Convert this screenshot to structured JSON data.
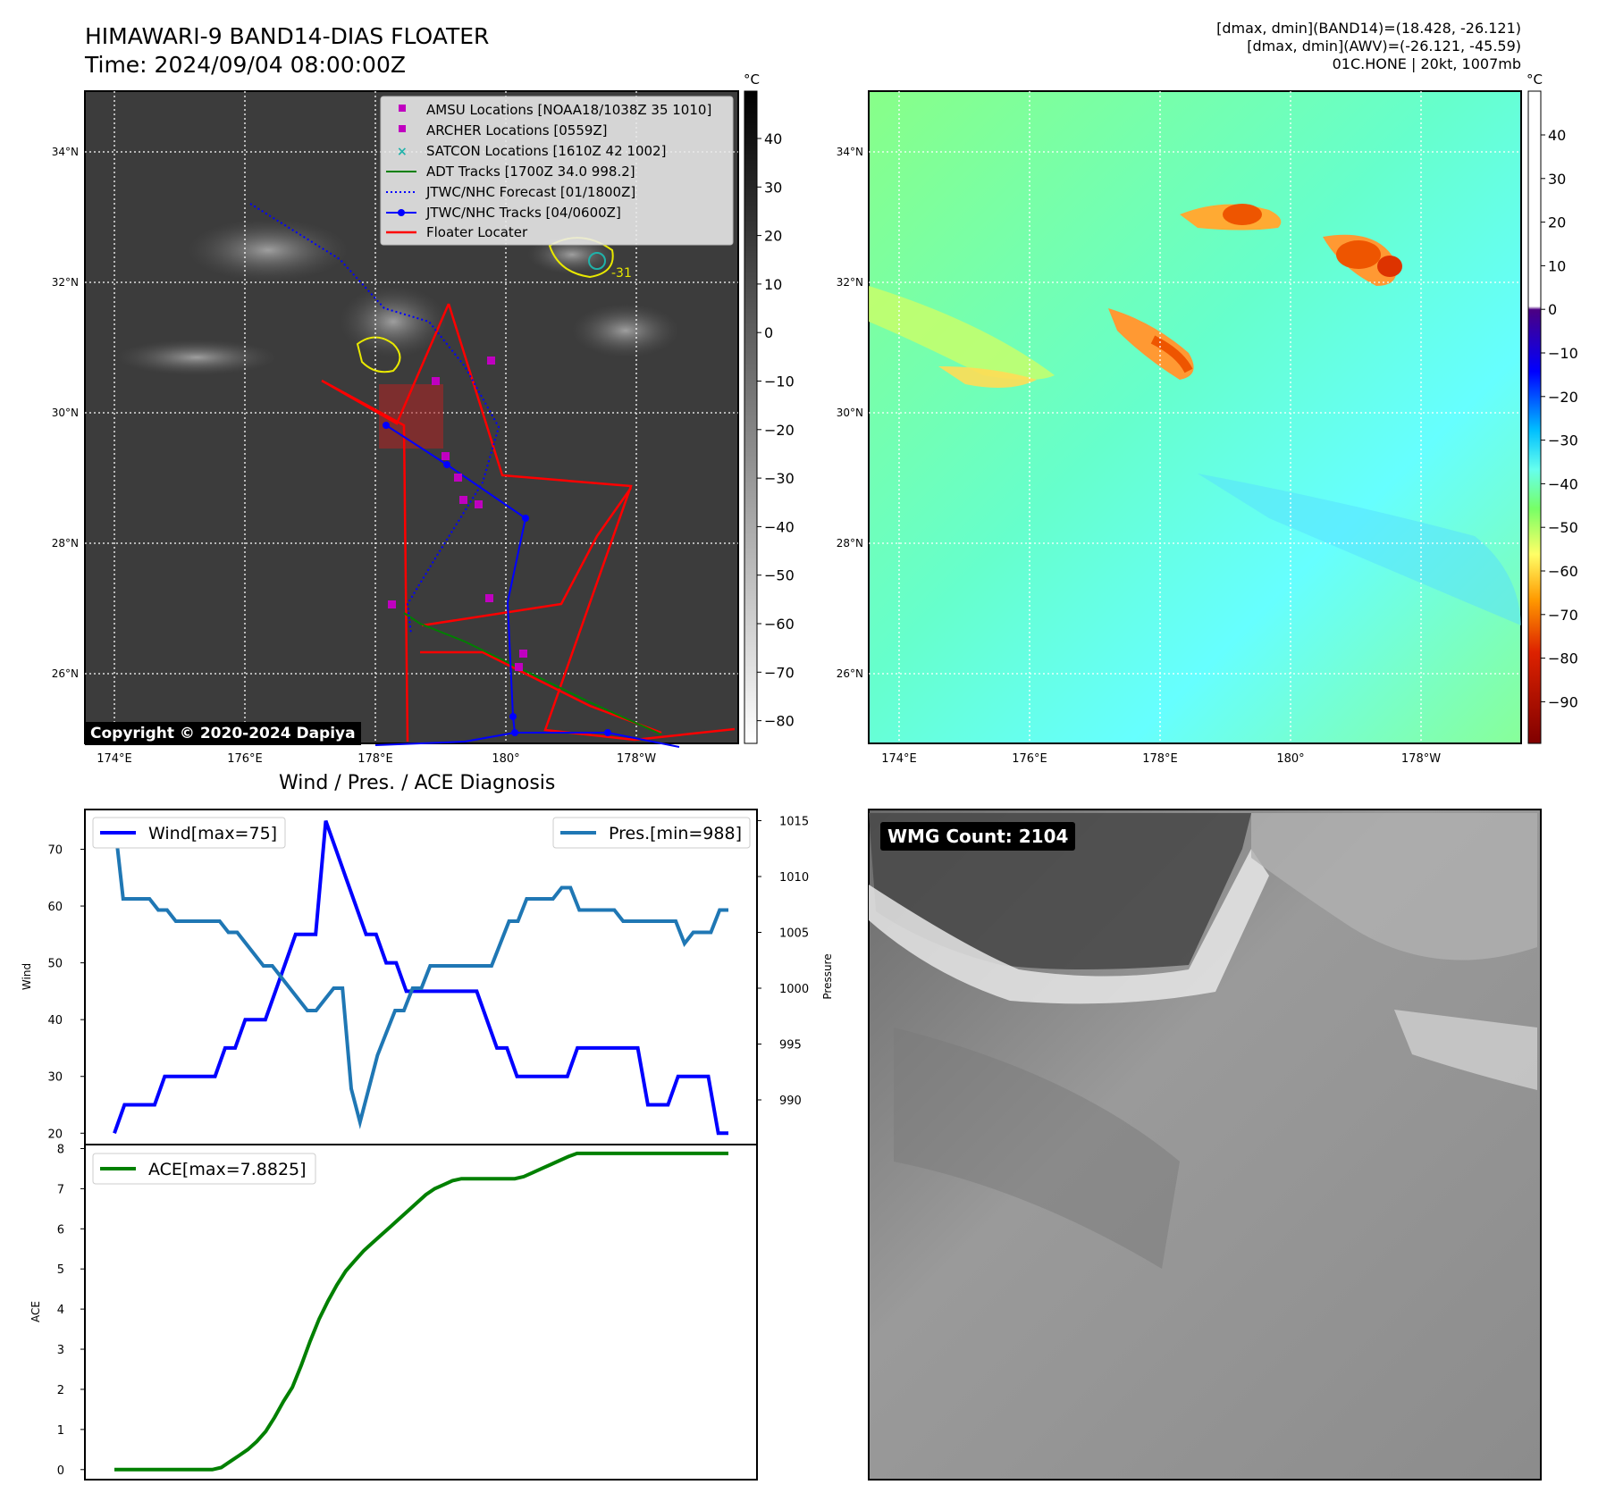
{
  "header": {
    "title": "HIMAWARI-9 BAND14-DIAS FLOATER",
    "time": "Time: 2024/09/04 08:00:00Z",
    "info_lines": [
      "[dmax, dmin](BAND14)=(18.428, -26.121)",
      "[dmax, dmin](AWV)=(-26.121, -45.59)",
      "01C.HONE | 20kt, 1007mb"
    ],
    "copyright": "Copyright © 2020-2024 Dapiya",
    "wmg_count": "WMG Count: 2104"
  },
  "maps": {
    "lon_labels": [
      "174°E",
      "176°E",
      "178°E",
      "180°",
      "178°W"
    ],
    "lat_labels": [
      "34°N",
      "32°N",
      "30°N",
      "28°N",
      "26°N"
    ],
    "colorbar_unit": "°C",
    "ir_colorbar_ticks": [
      40,
      30,
      20,
      10,
      0,
      -10,
      -20,
      -30,
      -40,
      -50,
      -60,
      -70,
      -80
    ],
    "awv_colorbar_ticks": [
      40,
      30,
      20,
      10,
      0,
      -10,
      -20,
      -30,
      -40,
      -50,
      -60,
      -70,
      -80,
      -90
    ],
    "legend": [
      {
        "label": "AMSU Locations [NOAA18/1038Z 35 1010]",
        "marker": "square",
        "color": "#c000c0"
      },
      {
        "label": "ARCHER Locations [0559Z]",
        "marker": "square",
        "color": "#c000c0"
      },
      {
        "label": "SATCON Locations [1610Z 42 1002]",
        "marker": "x",
        "color": "#20b2aa"
      },
      {
        "label": "ADT Tracks [1700Z 34.0 998.2]",
        "marker": "line",
        "color": "#008000"
      },
      {
        "label": "JTWC/NHC Forecast [01/1800Z]",
        "marker": "dotted",
        "color": "#0000ff"
      },
      {
        "label": "JTWC/NHC Tracks [04/0600Z]",
        "marker": "line-dot",
        "color": "#0000ff"
      },
      {
        "label": "Floater Locater",
        "marker": "line",
        "color": "#ff0000"
      }
    ],
    "contour_label": "-31"
  },
  "chart_data": [
    {
      "type": "line",
      "title": "Wind / Pres. / ACE Diagnosis",
      "ylabel": "Wind",
      "ylabel_right": "Pressure",
      "ylim": [
        18,
        77
      ],
      "ylim_right": [
        986,
        1016
      ],
      "yticks": [
        20,
        30,
        40,
        50,
        60,
        70
      ],
      "yticks_right": [
        990,
        995,
        1000,
        1005,
        1010,
        1015
      ],
      "series": [
        {
          "name": "Wind[max=75]",
          "color": "#0000ff",
          "axis": "left",
          "values": [
            20,
            25,
            25,
            25,
            25,
            30,
            30,
            30,
            30,
            30,
            30,
            35,
            35,
            40,
            40,
            40,
            45,
            50,
            55,
            55,
            55,
            75,
            70,
            65,
            60,
            55,
            55,
            50,
            50,
            45,
            45,
            45,
            45,
            45,
            45,
            45,
            45,
            40,
            35,
            35,
            30,
            30,
            30,
            30,
            30,
            30,
            35,
            35,
            35,
            35,
            35,
            35,
            35,
            25,
            25,
            25,
            30,
            30,
            30,
            30,
            20,
            20
          ]
        },
        {
          "name": "Pres.[min=988]",
          "color": "#1f77b4",
          "axis": "right",
          "values": [
            1015,
            1008,
            1008,
            1008,
            1008,
            1007,
            1007,
            1006,
            1006,
            1006,
            1006,
            1006,
            1006,
            1005,
            1005,
            1004,
            1003,
            1002,
            1002,
            1001,
            1000,
            999,
            998,
            998,
            999,
            1000,
            1000,
            991,
            988,
            991,
            994,
            996,
            998,
            998,
            1000,
            1000,
            1002,
            1002,
            1002,
            1002,
            1002,
            1002,
            1002,
            1002,
            1004,
            1006,
            1006,
            1008,
            1008,
            1008,
            1008,
            1009,
            1009,
            1007,
            1007,
            1007,
            1007,
            1007,
            1006,
            1006,
            1006,
            1006,
            1006,
            1006,
            1006,
            1004,
            1005,
            1005,
            1005,
            1007,
            1007
          ]
        }
      ]
    },
    {
      "type": "line",
      "ylabel": "ACE",
      "ylim": [
        -0.25,
        8.1
      ],
      "yticks": [
        0,
        1,
        2,
        3,
        4,
        5,
        6,
        7,
        8
      ],
      "series": [
        {
          "name": "ACE[max=7.8825]",
          "color": "#008000",
          "values": [
            0,
            0,
            0,
            0,
            0,
            0,
            0,
            0,
            0,
            0,
            0,
            0,
            0.05,
            0.2,
            0.35,
            0.5,
            0.7,
            0.95,
            1.3,
            1.7,
            2.05,
            2.6,
            3.2,
            3.75,
            4.2,
            4.6,
            4.95,
            5.2,
            5.45,
            5.65,
            5.85,
            6.05,
            6.25,
            6.45,
            6.65,
            6.85,
            7.0,
            7.1,
            7.2,
            7.25,
            7.25,
            7.25,
            7.25,
            7.25,
            7.25,
            7.25,
            7.3,
            7.4,
            7.5,
            7.6,
            7.7,
            7.8,
            7.88,
            7.88,
            7.88,
            7.88,
            7.88,
            7.88,
            7.88,
            7.88,
            7.88,
            7.88,
            7.88,
            7.88,
            7.88,
            7.88,
            7.88,
            7.88,
            7.88,
            7.88
          ]
        }
      ]
    }
  ]
}
